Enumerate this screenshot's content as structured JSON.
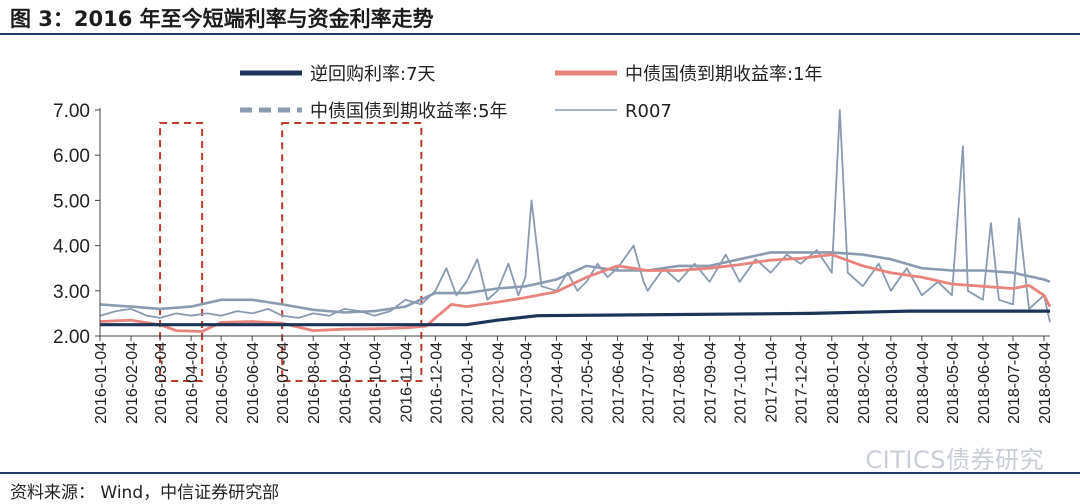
{
  "figure": {
    "title": "图 3：2016 年至今短端利率与资金利率走势",
    "source": "资料来源：  Wind，中信证券研究部",
    "watermark": "CITICS债券研究"
  },
  "colors": {
    "rule": "#1f3b66",
    "reverse_repo": "#1c3557",
    "cgb_1y": "#e8837e",
    "cgb_5y": "#8a9bb0",
    "r007": "#8a9bb0",
    "highlight_box": "#c0392b"
  },
  "chart_data": {
    "type": "line",
    "x_type": "date",
    "xlim": [
      "2016-01-04",
      "2018-08-10"
    ],
    "ylim": [
      2.0,
      7.0
    ],
    "yticks": [
      "2.00",
      "3.00",
      "4.00",
      "5.00",
      "6.00",
      "7.00"
    ],
    "xticks": [
      "2016-01-04",
      "2016-02-04",
      "2016-03-04",
      "2016-04-04",
      "2016-05-04",
      "2016-06-04",
      "2016-07-04",
      "2016-08-04",
      "2016-09-04",
      "2016-10-04",
      "2016-11-04",
      "2016-12-04",
      "2017-01-04",
      "2017-02-04",
      "2017-03-04",
      "2017-04-04",
      "2017-05-04",
      "2017-06-04",
      "2017-07-04",
      "2017-08-04",
      "2017-09-04",
      "2017-10-04",
      "2017-11-04",
      "2017-12-04",
      "2018-01-04",
      "2018-02-04",
      "2018-03-04",
      "2018-04-04",
      "2018-05-04",
      "2018-06-04",
      "2018-07-04",
      "2018-08-04"
    ],
    "grid": false,
    "legend_position": "top",
    "highlight_ranges": [
      {
        "start": "2016-03-04",
        "end": "2016-04-15"
      },
      {
        "start": "2016-07-04",
        "end": "2016-11-20"
      }
    ],
    "series": [
      {
        "name": "逆回购利率:7天",
        "style": "solid-thick",
        "points": [
          [
            "2016-01-04",
            2.25
          ],
          [
            "2017-01-04",
            2.25
          ],
          [
            "2017-02-04",
            2.35
          ],
          [
            "2017-03-16",
            2.45
          ],
          [
            "2017-12-14",
            2.5
          ],
          [
            "2018-03-22",
            2.55
          ],
          [
            "2018-08-10",
            2.55
          ]
        ]
      },
      {
        "name": "中债国债到期收益率:1年",
        "style": "solid",
        "points": [
          [
            "2016-01-04",
            2.32
          ],
          [
            "2016-02-04",
            2.35
          ],
          [
            "2016-03-04",
            2.25
          ],
          [
            "2016-03-20",
            2.12
          ],
          [
            "2016-04-15",
            2.1
          ],
          [
            "2016-05-04",
            2.3
          ],
          [
            "2016-06-04",
            2.32
          ],
          [
            "2016-07-04",
            2.28
          ],
          [
            "2016-08-04",
            2.12
          ],
          [
            "2016-09-04",
            2.15
          ],
          [
            "2016-10-04",
            2.16
          ],
          [
            "2016-11-04",
            2.18
          ],
          [
            "2016-11-25",
            2.22
          ],
          [
            "2016-12-04",
            2.4
          ],
          [
            "2016-12-20",
            2.7
          ],
          [
            "2017-01-04",
            2.65
          ],
          [
            "2017-02-04",
            2.75
          ],
          [
            "2017-03-04",
            2.85
          ],
          [
            "2017-04-04",
            2.98
          ],
          [
            "2017-05-04",
            3.3
          ],
          [
            "2017-06-04",
            3.55
          ],
          [
            "2017-07-04",
            3.45
          ],
          [
            "2017-08-04",
            3.45
          ],
          [
            "2017-09-04",
            3.5
          ],
          [
            "2017-10-04",
            3.58
          ],
          [
            "2017-11-04",
            3.68
          ],
          [
            "2017-12-04",
            3.72
          ],
          [
            "2018-01-04",
            3.8
          ],
          [
            "2018-02-04",
            3.55
          ],
          [
            "2018-03-04",
            3.4
          ],
          [
            "2018-04-04",
            3.3
          ],
          [
            "2018-05-04",
            3.15
          ],
          [
            "2018-06-04",
            3.1
          ],
          [
            "2018-07-04",
            3.05
          ],
          [
            "2018-07-20",
            3.12
          ],
          [
            "2018-08-04",
            2.9
          ],
          [
            "2018-08-10",
            2.65
          ]
        ]
      },
      {
        "name": "中债国债到期收益率:5年",
        "style": "dashed",
        "points": [
          [
            "2016-01-04",
            2.7
          ],
          [
            "2016-02-04",
            2.65
          ],
          [
            "2016-03-04",
            2.6
          ],
          [
            "2016-04-04",
            2.65
          ],
          [
            "2016-05-04",
            2.8
          ],
          [
            "2016-06-04",
            2.8
          ],
          [
            "2016-07-04",
            2.7
          ],
          [
            "2016-08-04",
            2.58
          ],
          [
            "2016-09-04",
            2.52
          ],
          [
            "2016-10-04",
            2.55
          ],
          [
            "2016-11-04",
            2.65
          ],
          [
            "2016-12-04",
            2.95
          ],
          [
            "2017-01-04",
            2.95
          ],
          [
            "2017-02-04",
            3.05
          ],
          [
            "2017-03-04",
            3.1
          ],
          [
            "2017-04-04",
            3.25
          ],
          [
            "2017-05-04",
            3.55
          ],
          [
            "2017-06-04",
            3.45
          ],
          [
            "2017-07-04",
            3.45
          ],
          [
            "2017-08-04",
            3.55
          ],
          [
            "2017-09-04",
            3.55
          ],
          [
            "2017-10-04",
            3.7
          ],
          [
            "2017-11-04",
            3.85
          ],
          [
            "2017-12-04",
            3.85
          ],
          [
            "2018-01-04",
            3.85
          ],
          [
            "2018-02-04",
            3.8
          ],
          [
            "2018-03-04",
            3.7
          ],
          [
            "2018-04-04",
            3.5
          ],
          [
            "2018-05-04",
            3.45
          ],
          [
            "2018-06-04",
            3.45
          ],
          [
            "2018-07-04",
            3.4
          ],
          [
            "2018-08-04",
            3.25
          ],
          [
            "2018-08-10",
            3.2
          ]
        ]
      },
      {
        "name": "R007",
        "style": "thin",
        "points": [
          [
            "2016-01-04",
            2.45
          ],
          [
            "2016-01-20",
            2.55
          ],
          [
            "2016-02-04",
            2.6
          ],
          [
            "2016-02-20",
            2.45
          ],
          [
            "2016-03-04",
            2.4
          ],
          [
            "2016-03-20",
            2.5
          ],
          [
            "2016-04-04",
            2.45
          ],
          [
            "2016-04-20",
            2.5
          ],
          [
            "2016-05-04",
            2.45
          ],
          [
            "2016-05-20",
            2.55
          ],
          [
            "2016-06-04",
            2.5
          ],
          [
            "2016-06-20",
            2.6
          ],
          [
            "2016-07-04",
            2.45
          ],
          [
            "2016-07-20",
            2.4
          ],
          [
            "2016-08-04",
            2.5
          ],
          [
            "2016-08-20",
            2.45
          ],
          [
            "2016-09-04",
            2.6
          ],
          [
            "2016-09-20",
            2.55
          ],
          [
            "2016-10-04",
            2.45
          ],
          [
            "2016-10-20",
            2.55
          ],
          [
            "2016-11-04",
            2.8
          ],
          [
            "2016-11-20",
            2.7
          ],
          [
            "2016-12-04",
            3.0
          ],
          [
            "2016-12-15",
            3.5
          ],
          [
            "2016-12-25",
            2.9
          ],
          [
            "2017-01-04",
            3.2
          ],
          [
            "2017-01-15",
            3.7
          ],
          [
            "2017-01-25",
            2.8
          ],
          [
            "2017-02-04",
            3.0
          ],
          [
            "2017-02-15",
            3.6
          ],
          [
            "2017-02-25",
            2.9
          ],
          [
            "2017-03-04",
            3.3
          ],
          [
            "2017-03-10",
            5.0
          ],
          [
            "2017-03-20",
            3.1
          ],
          [
            "2017-04-04",
            3.0
          ],
          [
            "2017-04-15",
            3.4
          ],
          [
            "2017-04-25",
            3.0
          ],
          [
            "2017-05-04",
            3.2
          ],
          [
            "2017-05-15",
            3.6
          ],
          [
            "2017-05-25",
            3.3
          ],
          [
            "2017-06-04",
            3.5
          ],
          [
            "2017-06-20",
            4.0
          ],
          [
            "2017-06-30",
            3.2
          ],
          [
            "2017-07-04",
            3.0
          ],
          [
            "2017-07-20",
            3.5
          ],
          [
            "2017-08-04",
            3.2
          ],
          [
            "2017-08-20",
            3.6
          ],
          [
            "2017-09-04",
            3.2
          ],
          [
            "2017-09-20",
            3.8
          ],
          [
            "2017-10-04",
            3.2
          ],
          [
            "2017-10-20",
            3.7
          ],
          [
            "2017-11-04",
            3.4
          ],
          [
            "2017-11-20",
            3.8
          ],
          [
            "2017-12-04",
            3.6
          ],
          [
            "2017-12-20",
            3.9
          ],
          [
            "2018-01-04",
            3.4
          ],
          [
            "2018-01-12",
            7.0
          ],
          [
            "2018-01-20",
            3.4
          ],
          [
            "2018-02-04",
            3.1
          ],
          [
            "2018-02-20",
            3.6
          ],
          [
            "2018-03-04",
            3.0
          ],
          [
            "2018-03-20",
            3.5
          ],
          [
            "2018-04-04",
            2.9
          ],
          [
            "2018-04-20",
            3.2
          ],
          [
            "2018-05-04",
            2.9
          ],
          [
            "2018-05-15",
            6.2
          ],
          [
            "2018-05-20",
            3.0
          ],
          [
            "2018-06-04",
            2.8
          ],
          [
            "2018-06-12",
            4.5
          ],
          [
            "2018-06-20",
            2.8
          ],
          [
            "2018-07-04",
            2.7
          ],
          [
            "2018-07-10",
            4.6
          ],
          [
            "2018-07-20",
            2.6
          ],
          [
            "2018-08-04",
            2.9
          ],
          [
            "2018-08-10",
            2.3
          ]
        ]
      }
    ]
  }
}
